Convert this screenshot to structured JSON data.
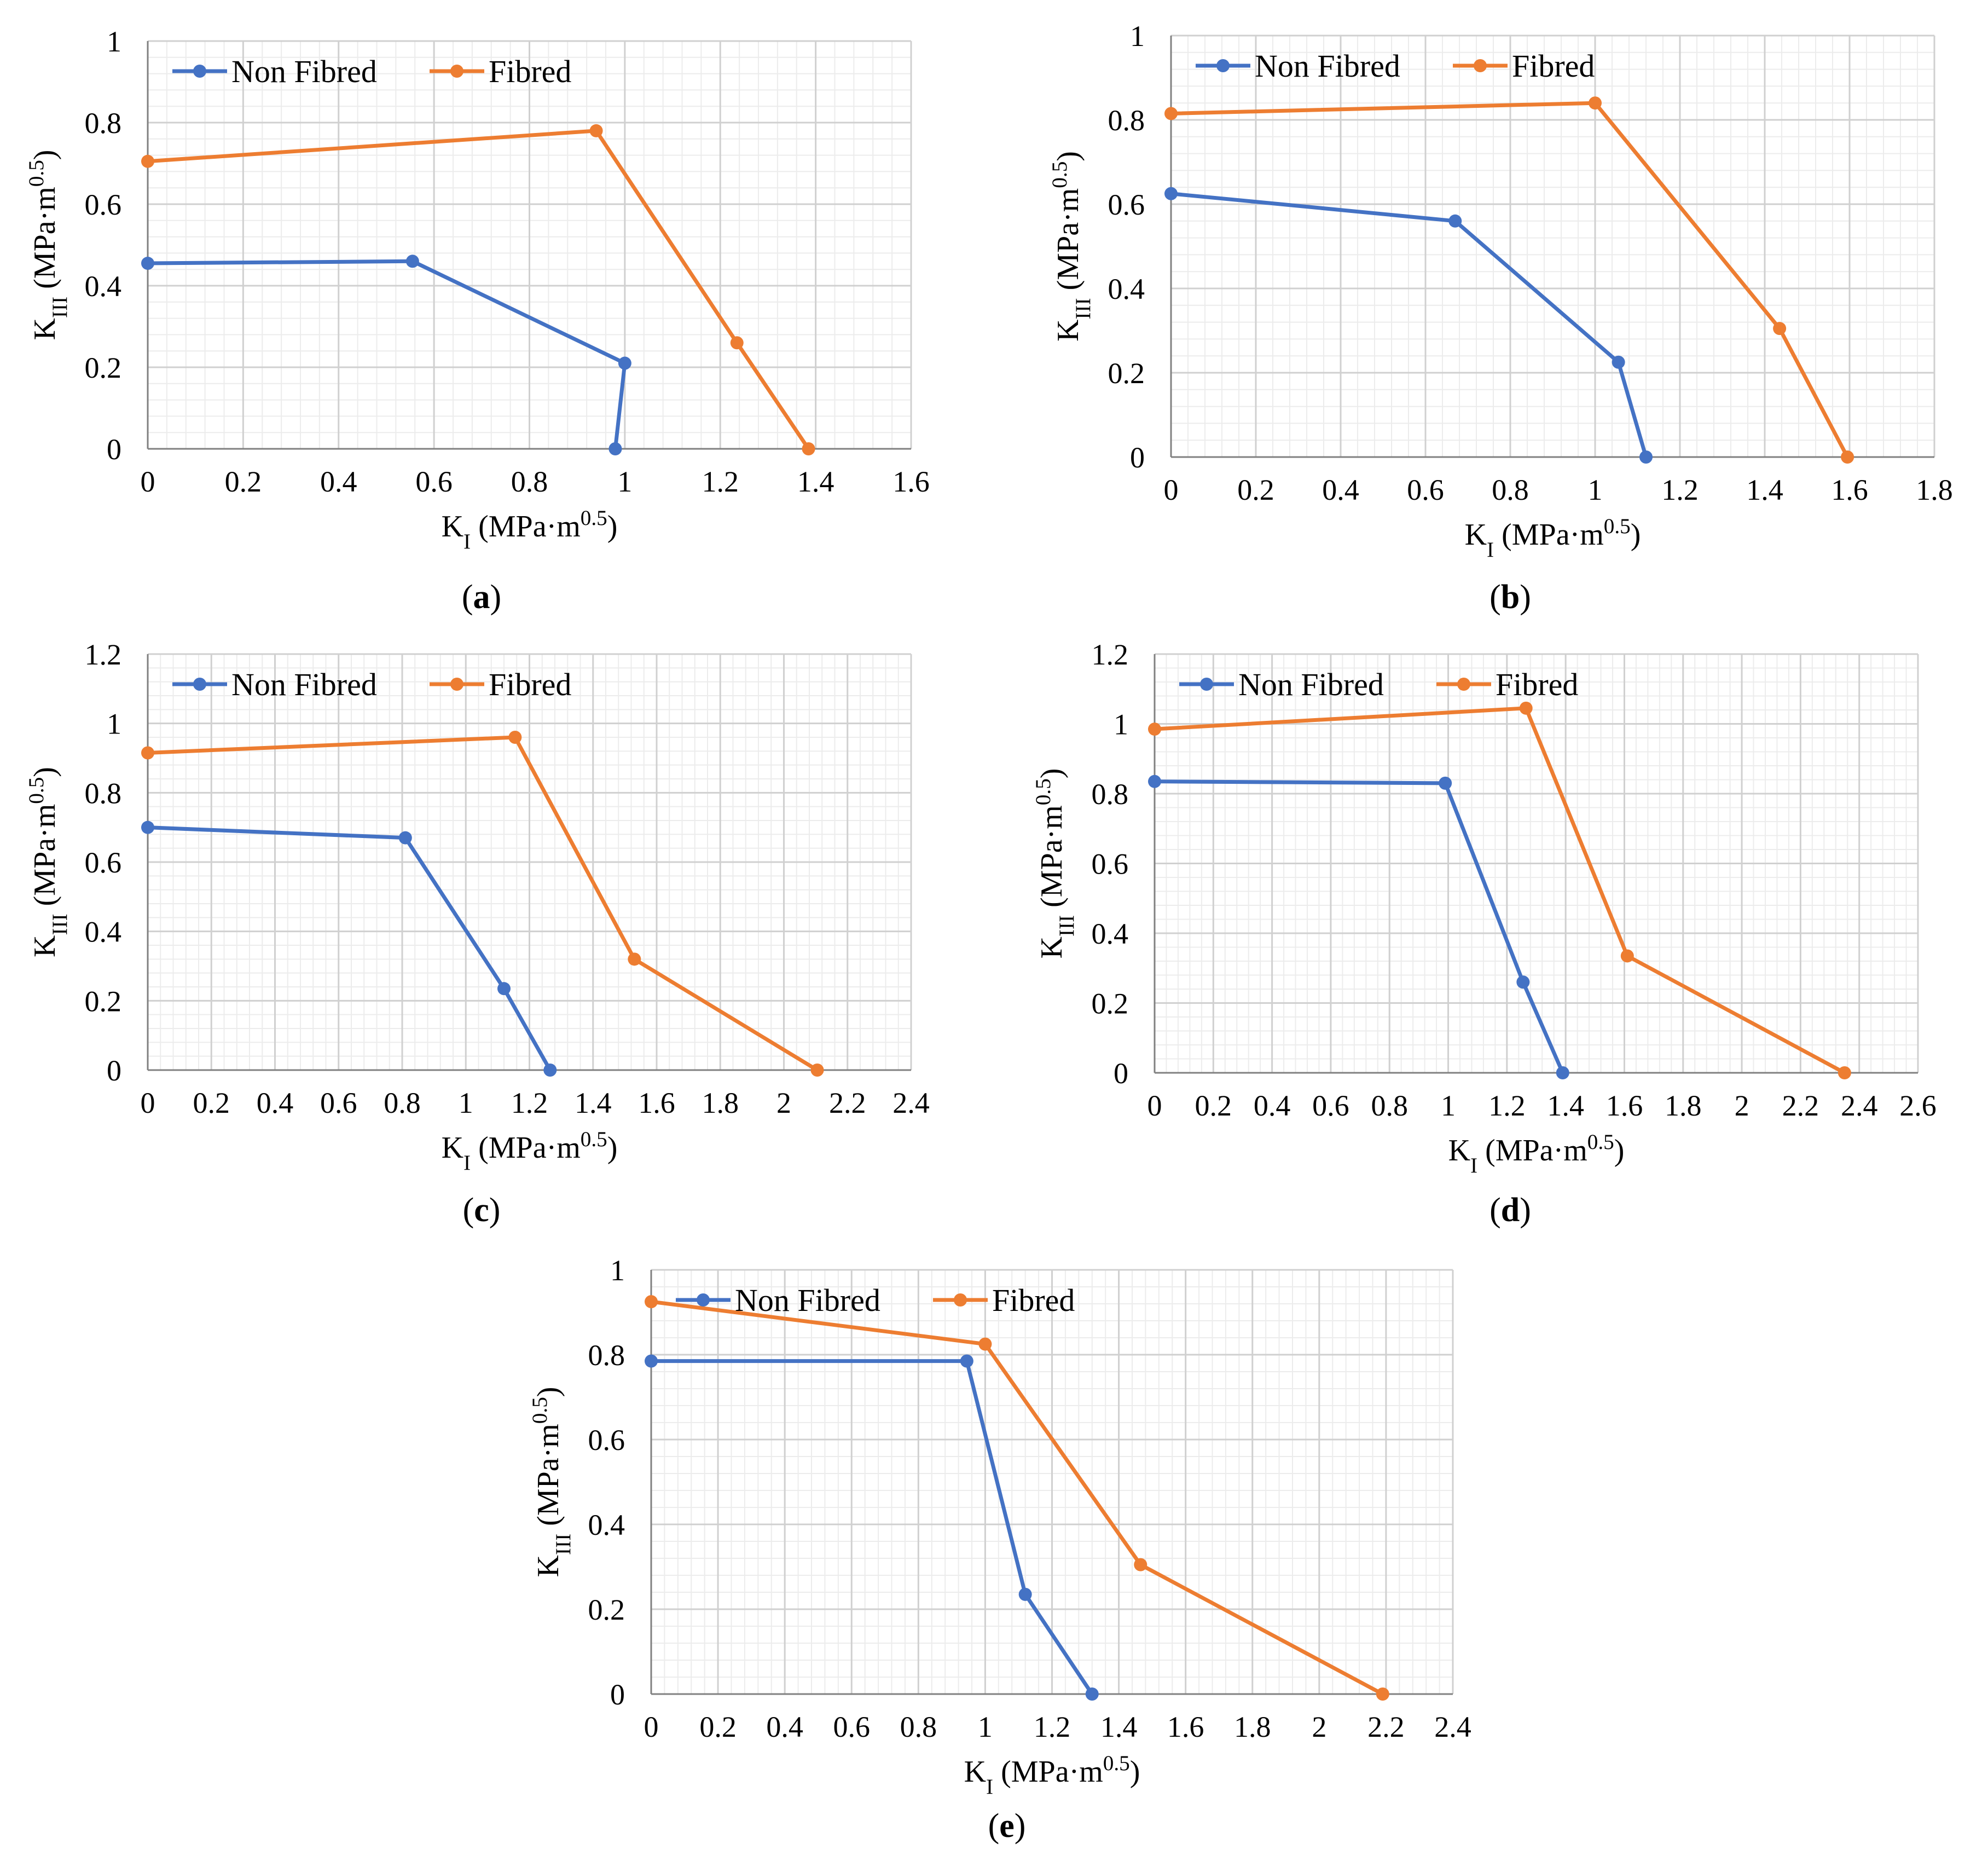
{
  "colors": {
    "non_fibred": "#4472C4",
    "fibred": "#ED7D31",
    "grid_major": "#d0d0d0",
    "grid_minor": "#ececec",
    "axis": "#808080"
  },
  "chart_data": [
    {
      "panel": "a",
      "caption": "a",
      "type": "line",
      "xlabel": "K_I (MPa·m^0.5)",
      "ylabel": "K_III (MPa·m^0.5)",
      "xlim": [
        0,
        1.6
      ],
      "x_step": 0.2,
      "ylim": [
        0,
        1
      ],
      "y_step": 0.2,
      "x_ticks": [
        "0",
        "0.2",
        "0.4",
        "0.6",
        "0.8",
        "1",
        "1.2",
        "1.4",
        "1.6"
      ],
      "y_ticks": [
        "0",
        "0.2",
        "0.4",
        "0.6",
        "0.8",
        "1"
      ],
      "legend": [
        "Non Fibred",
        "Fibred"
      ],
      "legend_position": "top-left",
      "series": [
        {
          "name": "Non Fibred",
          "points": [
            [
              0,
              0.455
            ],
            [
              0.555,
              0.46
            ],
            [
              1.0,
              0.21
            ],
            [
              0.98,
              0.0
            ]
          ]
        },
        {
          "name": "Fibred",
          "points": [
            [
              0,
              0.705
            ],
            [
              0.94,
              0.78
            ],
            [
              1.235,
              0.26
            ],
            [
              1.385,
              0.0
            ]
          ]
        }
      ]
    },
    {
      "panel": "b",
      "caption": "b",
      "type": "line",
      "xlabel": "K_I (MPa·m^0.5)",
      "ylabel": "K_III (MPa·m^0.5)",
      "xlim": [
        0,
        1.8
      ],
      "x_step": 0.2,
      "ylim": [
        0,
        1
      ],
      "y_step": 0.2,
      "x_ticks": [
        "0",
        "0.2",
        "0.4",
        "0.6",
        "0.8",
        "1",
        "1.2",
        "1.4",
        "1.6",
        "1.8"
      ],
      "y_ticks": [
        "0",
        "0.2",
        "0.4",
        "0.6",
        "0.8",
        "1"
      ],
      "legend": [
        "Non Fibred",
        "Fibred"
      ],
      "legend_position": "top-left",
      "series": [
        {
          "name": "Non Fibred",
          "points": [
            [
              0,
              0.625
            ],
            [
              0.67,
              0.56
            ],
            [
              1.055,
              0.225
            ],
            [
              1.12,
              0.0
            ]
          ]
        },
        {
          "name": "Fibred",
          "points": [
            [
              0,
              0.815
            ],
            [
              1.0,
              0.84
            ],
            [
              1.435,
              0.305
            ],
            [
              1.595,
              0.0
            ]
          ]
        }
      ]
    },
    {
      "panel": "c",
      "caption": "c",
      "type": "line",
      "xlabel": "K_I (MPa·m^0.5)",
      "ylabel": "K_III (MPa·m^0.5)",
      "xlim": [
        0,
        2.4
      ],
      "x_step": 0.2,
      "ylim": [
        0,
        1.2
      ],
      "y_step": 0.2,
      "x_ticks": [
        "0",
        "0.2",
        "0.4",
        "0.6",
        "0.8",
        "1",
        "1.2",
        "1.4",
        "1.6",
        "1.8",
        "2",
        "2.2",
        "2.4"
      ],
      "y_ticks": [
        "0",
        "0.2",
        "0.4",
        "0.6",
        "0.8",
        "1",
        "1.2"
      ],
      "legend": [
        "Non Fibred",
        "Fibred"
      ],
      "legend_position": "top-left",
      "series": [
        {
          "name": "Non Fibred",
          "points": [
            [
              0,
              0.7
            ],
            [
              0.81,
              0.67
            ],
            [
              1.12,
              0.235
            ],
            [
              1.265,
              0.0
            ]
          ]
        },
        {
          "name": "Fibred",
          "points": [
            [
              0,
              0.915
            ],
            [
              1.155,
              0.96
            ],
            [
              1.53,
              0.32
            ],
            [
              2.105,
              0.0
            ]
          ]
        }
      ]
    },
    {
      "panel": "d",
      "caption": "d",
      "type": "line",
      "xlabel": "K_I (MPa·m^0.5)",
      "ylabel": "K_III (MPa·m^0.5)",
      "xlim": [
        0,
        2.6
      ],
      "x_step": 0.2,
      "ylim": [
        0,
        1.2
      ],
      "y_step": 0.2,
      "x_ticks": [
        "0",
        "0.2",
        "0.4",
        "0.6",
        "0.8",
        "1",
        "1.2",
        "1.4",
        "1.6",
        "1.8",
        "2",
        "2.2",
        "2.4",
        "2.6"
      ],
      "y_ticks": [
        "0",
        "0.2",
        "0.4",
        "0.6",
        "0.8",
        "1",
        "1.2"
      ],
      "legend": [
        "Non Fibred",
        "Fibred"
      ],
      "legend_position": "top-left",
      "series": [
        {
          "name": "Non Fibred",
          "points": [
            [
              0,
              0.835
            ],
            [
              0.99,
              0.83
            ],
            [
              1.255,
              0.26
            ],
            [
              1.39,
              0.0
            ]
          ]
        },
        {
          "name": "Fibred",
          "points": [
            [
              0,
              0.985
            ],
            [
              1.265,
              1.045
            ],
            [
              1.61,
              0.335
            ],
            [
              2.35,
              0.0
            ]
          ]
        }
      ]
    },
    {
      "panel": "e",
      "caption": "e",
      "type": "line",
      "xlabel": "K_I (MPa·m^0.5)",
      "ylabel": "K_III (MPa·m^0.5)",
      "xlim": [
        0,
        2.4
      ],
      "x_step": 0.2,
      "ylim": [
        0,
        1
      ],
      "y_step": 0.2,
      "x_ticks": [
        "0",
        "0.2",
        "0.4",
        "0.6",
        "0.8",
        "1",
        "1.2",
        "1.4",
        "1.6",
        "1.8",
        "2",
        "2.2",
        "2.4"
      ],
      "y_ticks": [
        "0",
        "0.2",
        "0.4",
        "0.6",
        "0.8",
        "1"
      ],
      "legend": [
        "Non Fibred",
        "Fibred"
      ],
      "legend_position": "top-left",
      "series": [
        {
          "name": "Non Fibred",
          "points": [
            [
              0,
              0.785
            ],
            [
              0.945,
              0.785
            ],
            [
              1.12,
              0.235
            ],
            [
              1.32,
              0.0
            ]
          ]
        },
        {
          "name": "Fibred",
          "points": [
            [
              0,
              0.925
            ],
            [
              1.0,
              0.825
            ],
            [
              1.465,
              0.305
            ],
            [
              2.19,
              0.0
            ]
          ]
        }
      ]
    }
  ]
}
